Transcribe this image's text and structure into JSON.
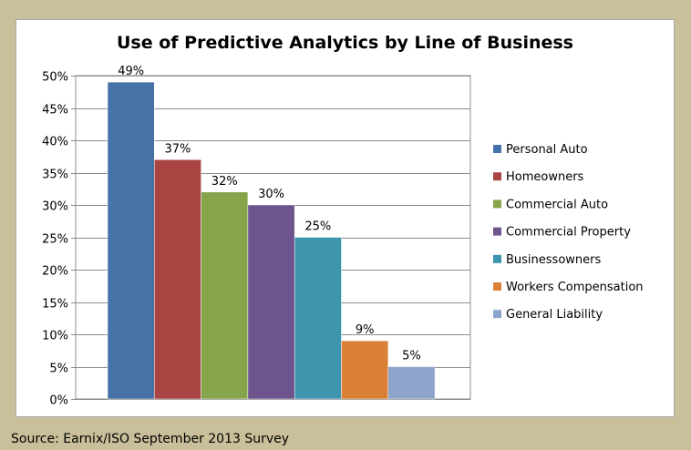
{
  "chart_data": {
    "type": "bar",
    "title": "Use of Predictive Analytics by Line of Business",
    "xlabel": "",
    "ylabel": "",
    "ylim": [
      0,
      50
    ],
    "y_ticks": [
      "0%",
      "5%",
      "10%",
      "15%",
      "20%",
      "25%",
      "30%",
      "35%",
      "40%",
      "45%",
      "50%"
    ],
    "grid": true,
    "legend_position": "right",
    "series": [
      {
        "name": "Personal Auto",
        "value": 49,
        "label": "49%",
        "color": "#4672a8"
      },
      {
        "name": "Homeowners",
        "value": 37,
        "label": "37%",
        "color": "#a94643"
      },
      {
        "name": "Commercial Auto",
        "value": 32,
        "label": "32%",
        "color": "#86a44a"
      },
      {
        "name": "Commercial Property",
        "value": 30,
        "label": "30%",
        "color": "#6e548d"
      },
      {
        "name": "Businessowners",
        "value": 25,
        "label": "25%",
        "color": "#3d96ae"
      },
      {
        "name": "Workers Compensation",
        "value": 9,
        "label": "9%",
        "color": "#da8137"
      },
      {
        "name": "General Liability",
        "value": 5,
        "label": "5%",
        "color": "#8ea5cb"
      }
    ]
  },
  "source": "Source: Earnix/ISO September 2013 Survey"
}
